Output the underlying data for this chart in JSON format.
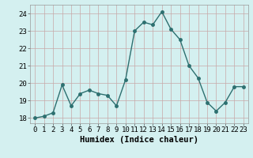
{
  "x": [
    0,
    1,
    2,
    3,
    4,
    5,
    6,
    7,
    8,
    9,
    10,
    11,
    12,
    13,
    14,
    15,
    16,
    17,
    18,
    19,
    20,
    21,
    22,
    23
  ],
  "y": [
    18.0,
    18.1,
    18.3,
    19.9,
    18.7,
    19.4,
    19.6,
    19.4,
    19.3,
    18.7,
    20.2,
    23.0,
    23.5,
    23.35,
    24.1,
    23.1,
    22.5,
    21.0,
    20.3,
    18.9,
    18.4,
    18.9,
    19.8,
    19.8
  ],
  "line_color": "#2d7070",
  "marker": "o",
  "markersize": 2.5,
  "linewidth": 1.0,
  "bg_color": "#d4f0f0",
  "grid_color_major": "#c8a8a8",
  "grid_color_minor": "#d8b8b8",
  "xlabel": "Humidex (Indice chaleur)",
  "xlim": [
    -0.5,
    23.5
  ],
  "ylim": [
    17.7,
    24.5
  ],
  "yticks": [
    18,
    19,
    20,
    21,
    22,
    23,
    24
  ],
  "xticks": [
    0,
    1,
    2,
    3,
    4,
    5,
    6,
    7,
    8,
    9,
    10,
    11,
    12,
    13,
    14,
    15,
    16,
    17,
    18,
    19,
    20,
    21,
    22,
    23
  ],
  "xlabel_fontsize": 7.5,
  "tick_fontsize": 6.5
}
